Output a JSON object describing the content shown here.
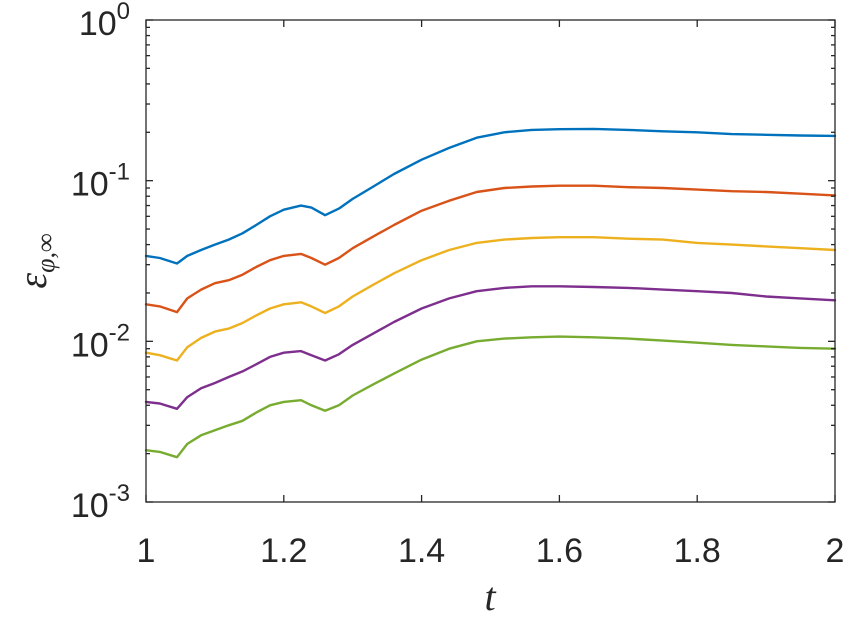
{
  "chart_data": {
    "type": "line",
    "xlabel": "t",
    "ylabel": "ε",
    "ylabel_sub": "φ,∞",
    "xlim": [
      1,
      2
    ],
    "ylim": [
      0.001,
      1
    ],
    "yscale": "log",
    "grid": false,
    "legend": "none",
    "xticks": [
      1,
      1.2,
      1.4,
      1.6,
      1.8,
      2
    ],
    "xtick_labels": [
      "1",
      "1.2",
      "1.4",
      "1.6",
      "1.8",
      "2"
    ],
    "yticks": [
      {
        "value": 0.001,
        "base": "10",
        "exp": "-3"
      },
      {
        "value": 0.01,
        "base": "10",
        "exp": "-2"
      },
      {
        "value": 0.1,
        "base": "10",
        "exp": "-1"
      },
      {
        "value": 1,
        "base": "10",
        "exp": "0"
      }
    ],
    "x": [
      1.0,
      1.02,
      1.045,
      1.06,
      1.08,
      1.1,
      1.12,
      1.14,
      1.16,
      1.18,
      1.2,
      1.225,
      1.24,
      1.26,
      1.28,
      1.3,
      1.33,
      1.36,
      1.4,
      1.44,
      1.48,
      1.52,
      1.56,
      1.6,
      1.65,
      1.7,
      1.75,
      1.8,
      1.85,
      1.9,
      1.95,
      2.0
    ],
    "series": [
      {
        "color": "#0072BD",
        "values": [
          0.034,
          0.033,
          0.0305,
          0.034,
          0.037,
          0.04,
          0.043,
          0.047,
          0.053,
          0.06,
          0.066,
          0.07,
          0.068,
          0.061,
          0.067,
          0.077,
          0.092,
          0.11,
          0.135,
          0.16,
          0.185,
          0.2,
          0.207,
          0.209,
          0.21,
          0.207,
          0.203,
          0.2,
          0.195,
          0.193,
          0.191,
          0.19
        ]
      },
      {
        "color": "#D95319",
        "values": [
          0.017,
          0.0165,
          0.0152,
          0.0185,
          0.021,
          0.023,
          0.024,
          0.026,
          0.029,
          0.032,
          0.034,
          0.035,
          0.033,
          0.03,
          0.033,
          0.038,
          0.045,
          0.053,
          0.065,
          0.075,
          0.085,
          0.09,
          0.092,
          0.093,
          0.093,
          0.091,
          0.09,
          0.088,
          0.086,
          0.085,
          0.083,
          0.081
        ]
      },
      {
        "color": "#EDB120",
        "values": [
          0.0085,
          0.0082,
          0.0076,
          0.0092,
          0.0105,
          0.0115,
          0.012,
          0.013,
          0.0145,
          0.016,
          0.017,
          0.0175,
          0.0165,
          0.015,
          0.0165,
          0.019,
          0.0225,
          0.0265,
          0.032,
          0.037,
          0.041,
          0.043,
          0.044,
          0.0445,
          0.0445,
          0.0435,
          0.043,
          0.041,
          0.04,
          0.039,
          0.038,
          0.037
        ]
      },
      {
        "color": "#7E2F8E",
        "values": [
          0.0042,
          0.0041,
          0.0038,
          0.0045,
          0.0051,
          0.0055,
          0.006,
          0.0065,
          0.0072,
          0.008,
          0.0085,
          0.0087,
          0.0082,
          0.0076,
          0.0083,
          0.0095,
          0.0112,
          0.0132,
          0.016,
          0.0185,
          0.0205,
          0.0215,
          0.022,
          0.022,
          0.0218,
          0.0215,
          0.021,
          0.0205,
          0.02,
          0.019,
          0.0185,
          0.018
        ]
      },
      {
        "color": "#77AC30",
        "values": [
          0.0021,
          0.00205,
          0.0019,
          0.0023,
          0.0026,
          0.0028,
          0.003,
          0.0032,
          0.0036,
          0.004,
          0.0042,
          0.0043,
          0.004,
          0.0037,
          0.004,
          0.0046,
          0.0054,
          0.0063,
          0.0077,
          0.009,
          0.01,
          0.0104,
          0.0106,
          0.0107,
          0.0106,
          0.0104,
          0.0101,
          0.0098,
          0.0095,
          0.0093,
          0.0091,
          0.009
        ]
      }
    ]
  }
}
